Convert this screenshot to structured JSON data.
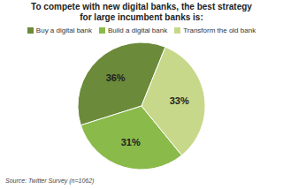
{
  "chart_data": {
    "type": "pie",
    "title": "To compete with new digital banks, the best strategy\nfor large incumbent banks is:",
    "categories": [
      "Buy a digital bank",
      "Build a digital bank",
      "Transform the old bank"
    ],
    "values": [
      36,
      31,
      33
    ],
    "value_labels": [
      "36%",
      "31%",
      "33%"
    ],
    "colors": [
      "#6b8a3a",
      "#8aba4a",
      "#c8d88a"
    ],
    "data_labels": true,
    "legend": "top",
    "annotations": [
      "Source: Twitter Survey (n=1062)"
    ]
  }
}
